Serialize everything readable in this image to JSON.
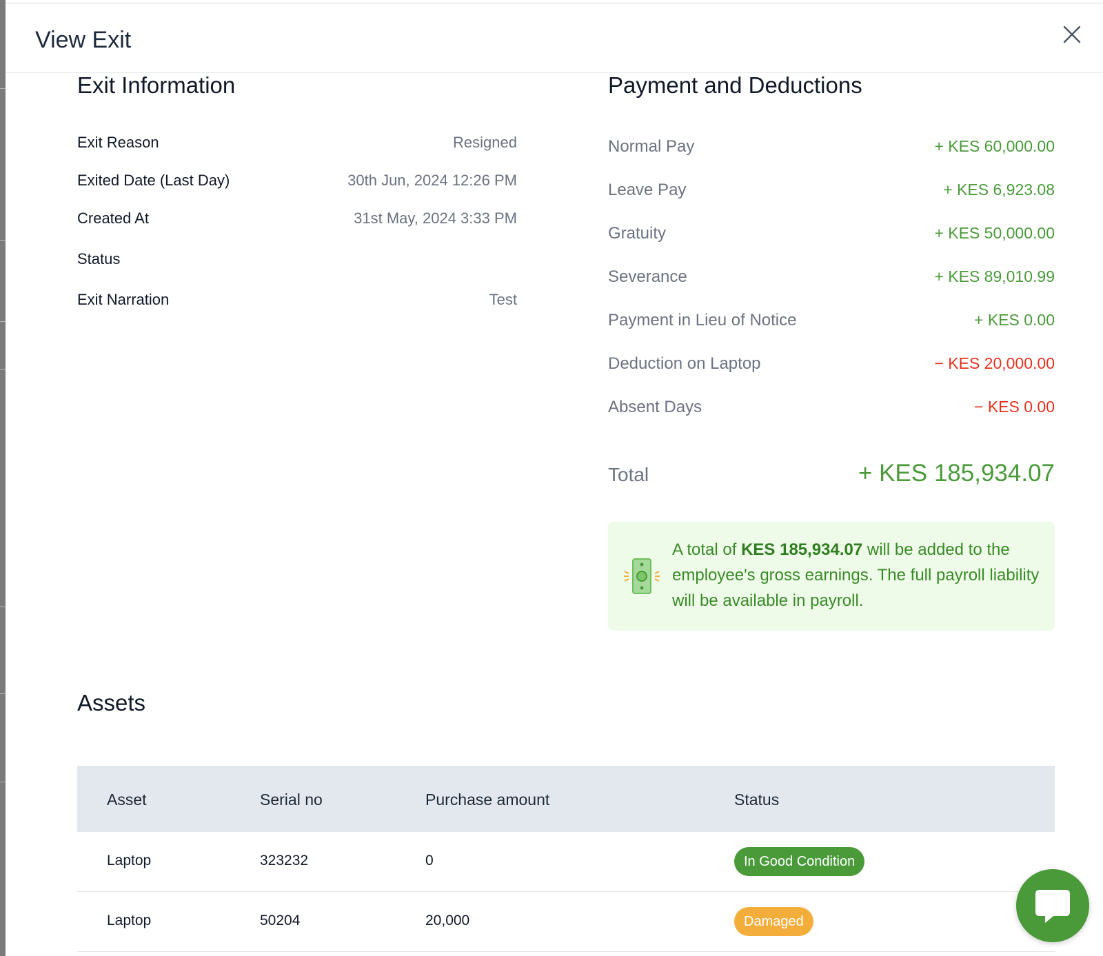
{
  "modal": {
    "title": "View Exit"
  },
  "exit_info": {
    "title": "Exit Information",
    "rows": [
      {
        "label": "Exit Reason",
        "value": "Resigned"
      },
      {
        "label": "Exited Date (Last Day)",
        "value": "30th Jun, 2024 12:26 PM"
      },
      {
        "label": "Created At",
        "value": "31st May, 2024 3:33 PM"
      },
      {
        "label": "Status",
        "value": ""
      },
      {
        "label": "Exit Narration",
        "value": "Test"
      }
    ]
  },
  "payments": {
    "title": "Payment and Deductions",
    "rows": [
      {
        "label": "Normal Pay",
        "value": "+ KES 60,000.00"
      },
      {
        "label": "Leave Pay",
        "value": "+ KES 6,923.08"
      },
      {
        "label": "Gratuity",
        "value": "+ KES 50,000.00"
      },
      {
        "label": "Severance",
        "value": "+ KES 89,010.99"
      },
      {
        "label": "Payment in Lieu of Notice",
        "value": "+ KES 0.00"
      },
      {
        "label": "Deduction on Laptop",
        "value": "− KES 20,000.00"
      },
      {
        "label": "Absent Days",
        "value": "− KES 0.00"
      }
    ],
    "total_label": "Total",
    "total_value": "+ KES 185,934.07",
    "notice": {
      "prefix": "A total of ",
      "amount": "KES 185,934.07",
      "suffix": " will be added to the employee's gross earnings. The full payroll liability will be available in payroll."
    }
  },
  "assets": {
    "title": "Assets",
    "columns": [
      "Asset",
      "Serial no",
      "Purchase amount",
      "Status"
    ],
    "rows": [
      {
        "asset": "Laptop",
        "serial": "323232",
        "amount": "0",
        "status": "In Good Condition"
      },
      {
        "asset": "Laptop",
        "serial": "50204",
        "amount": "20,000",
        "status": "Damaged"
      }
    ]
  },
  "colors": {
    "positive": "#4a9a3a",
    "negative": "#e5321e",
    "badge_good": "#4a9a3a",
    "badge_damaged": "#f3ad3a",
    "table_header_bg": "#e2e8ee",
    "notice_bg": "#edfbe8"
  },
  "icons": {
    "close": "close-icon",
    "money": "money-icon",
    "chat": "chat-icon"
  }
}
